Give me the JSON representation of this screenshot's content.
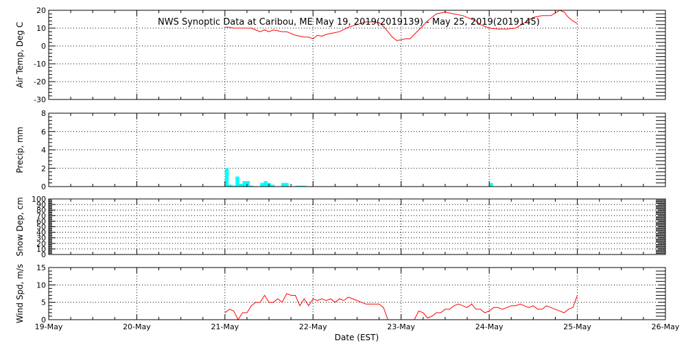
{
  "title": "NWS Synoptic Data at Caribou, ME   May 19, 2019(2019139) - May 25, 2019(2019145)",
  "xlabel": "Date (EST)",
  "x_tick_labels": [
    "19-May",
    "20-May",
    "21-May",
    "22-May",
    "23-May",
    "24-May",
    "25-May",
    "26-May"
  ],
  "colors": {
    "temp": "#ff0000",
    "wind": "#ff0000",
    "precip": "#00ffff",
    "axis": "#000000"
  },
  "chart_data": [
    {
      "type": "line",
      "panel": "air-temp",
      "ylabel": "Air Temp, Deg C",
      "ylim": [
        -30,
        20
      ],
      "yticks": [
        -30,
        -20,
        -10,
        0,
        10,
        20
      ],
      "ytick_labels": [
        "-30",
        "-20",
        "-10",
        "0",
        "10",
        "20"
      ],
      "xlim": [
        0,
        7
      ],
      "grid": true,
      "x": [
        2.0,
        2.04,
        2.1,
        2.2,
        2.3,
        2.35,
        2.4,
        2.45,
        2.5,
        2.55,
        2.6,
        2.65,
        2.7,
        2.8,
        2.9,
        2.95,
        3.0,
        3.05,
        3.1,
        3.15,
        3.2,
        3.3,
        3.4,
        3.5,
        3.6,
        3.7,
        3.75,
        3.8,
        3.85,
        3.9,
        3.95,
        4.0,
        4.05,
        4.1,
        4.2,
        4.3,
        4.4,
        4.5,
        4.6,
        4.7,
        4.8,
        4.85,
        4.9,
        5.0,
        5.1,
        5.2,
        5.3,
        5.4,
        5.5,
        5.6,
        5.7,
        5.75,
        5.8,
        5.85,
        5.9,
        5.95,
        6.0
      ],
      "y": [
        10.5,
        10.5,
        10,
        10,
        10,
        9,
        8,
        9,
        8,
        9,
        8.5,
        8,
        8,
        6,
        5,
        5,
        4,
        6,
        5.5,
        6.5,
        7,
        8,
        10.5,
        12,
        13.5,
        13.5,
        13,
        11,
        8,
        5,
        3,
        3.5,
        4,
        4,
        9,
        14,
        18,
        19,
        18,
        17,
        15,
        14,
        12,
        10,
        9.5,
        9.5,
        10,
        13,
        16,
        17,
        17,
        18.5,
        20,
        19,
        16,
        14,
        12.5
      ]
    },
    {
      "type": "bar",
      "panel": "precip",
      "ylabel": "Precip, mm",
      "ylim": [
        0,
        8
      ],
      "yticks": [
        0,
        2,
        4,
        6,
        8
      ],
      "ytick_labels": [
        "0",
        "2",
        "4",
        "6",
        "8"
      ],
      "xlim": [
        0,
        7
      ],
      "grid": true,
      "x": [
        2.0,
        2.04,
        2.08,
        2.12,
        2.16,
        2.2,
        2.24,
        2.28,
        2.32,
        2.36,
        2.4,
        2.44,
        2.48,
        2.52,
        2.56,
        2.6,
        2.64,
        2.68,
        2.72,
        2.76,
        2.8,
        2.84,
        2.88,
        2.92,
        5.0
      ],
      "values": [
        2.0,
        0.2,
        0.1,
        1.1,
        0.3,
        0.6,
        0.6,
        0.1,
        0.0,
        0.0,
        0.4,
        0.6,
        0.4,
        0.2,
        0.0,
        0.0,
        0.4,
        0.4,
        0.0,
        0.0,
        0.1,
        0.1,
        0.1,
        0.0,
        0.4
      ]
    },
    {
      "type": "line",
      "panel": "snow-depth",
      "ylabel": "Snow Dep, cm",
      "ylim": [
        0,
        100
      ],
      "yticks": [
        0,
        10,
        20,
        30,
        40,
        50,
        60,
        70,
        80,
        90,
        100
      ],
      "ytick_labels": [
        "0",
        "10",
        "20",
        "30",
        "40",
        "50",
        "60",
        "70",
        "80",
        "90",
        "100"
      ],
      "xlim": [
        0,
        7
      ],
      "grid": true,
      "x": [],
      "y": []
    },
    {
      "type": "line",
      "panel": "wind-speed",
      "ylabel": "Wind Spd, m/s",
      "ylim": [
        0,
        15
      ],
      "yticks": [
        0,
        5,
        10,
        15
      ],
      "ytick_labels": [
        "0",
        "5",
        "10",
        "15"
      ],
      "xlim": [
        0,
        7
      ],
      "grid": true,
      "x": [
        2.0,
        2.05,
        2.1,
        2.15,
        2.2,
        2.25,
        2.3,
        2.35,
        2.4,
        2.45,
        2.5,
        2.55,
        2.6,
        2.65,
        2.7,
        2.75,
        2.8,
        2.85,
        2.9,
        2.95,
        3.0,
        3.05,
        3.1,
        3.15,
        3.2,
        3.25,
        3.3,
        3.35,
        3.4,
        3.45,
        3.5,
        3.55,
        3.6,
        3.65,
        3.7,
        3.75,
        3.8,
        3.85,
        4.15,
        4.2,
        4.25,
        4.3,
        4.35,
        4.4,
        4.45,
        4.5,
        4.55,
        4.6,
        4.65,
        4.7,
        4.75,
        4.8,
        4.85,
        4.9,
        4.95,
        5.0,
        5.05,
        5.1,
        5.15,
        5.2,
        5.25,
        5.3,
        5.35,
        5.4,
        5.45,
        5.5,
        5.55,
        5.6,
        5.65,
        5.7,
        5.75,
        5.8,
        5.85,
        5.9,
        5.95,
        6.0
      ],
      "y": [
        2,
        3,
        2.5,
        0,
        2,
        2,
        4,
        5,
        5,
        7,
        5,
        5,
        6,
        5,
        7.5,
        7,
        7,
        4,
        6,
        4,
        6,
        5.5,
        6,
        5.5,
        6,
        5,
        6,
        5.5,
        6.5,
        6,
        5.5,
        5,
        4.5,
        4.5,
        4.5,
        4.5,
        3.5,
        0,
        0,
        2.5,
        2,
        0.5,
        1,
        2,
        2,
        3,
        3,
        4,
        4.5,
        4,
        3.5,
        4.5,
        3,
        3,
        2,
        2.5,
        3.5,
        3.5,
        3,
        3.5,
        4,
        4,
        4.5,
        4,
        3.5,
        4,
        3,
        3,
        4,
        3.5,
        3,
        2.5,
        2,
        3,
        3.5,
        7
      ]
    }
  ]
}
